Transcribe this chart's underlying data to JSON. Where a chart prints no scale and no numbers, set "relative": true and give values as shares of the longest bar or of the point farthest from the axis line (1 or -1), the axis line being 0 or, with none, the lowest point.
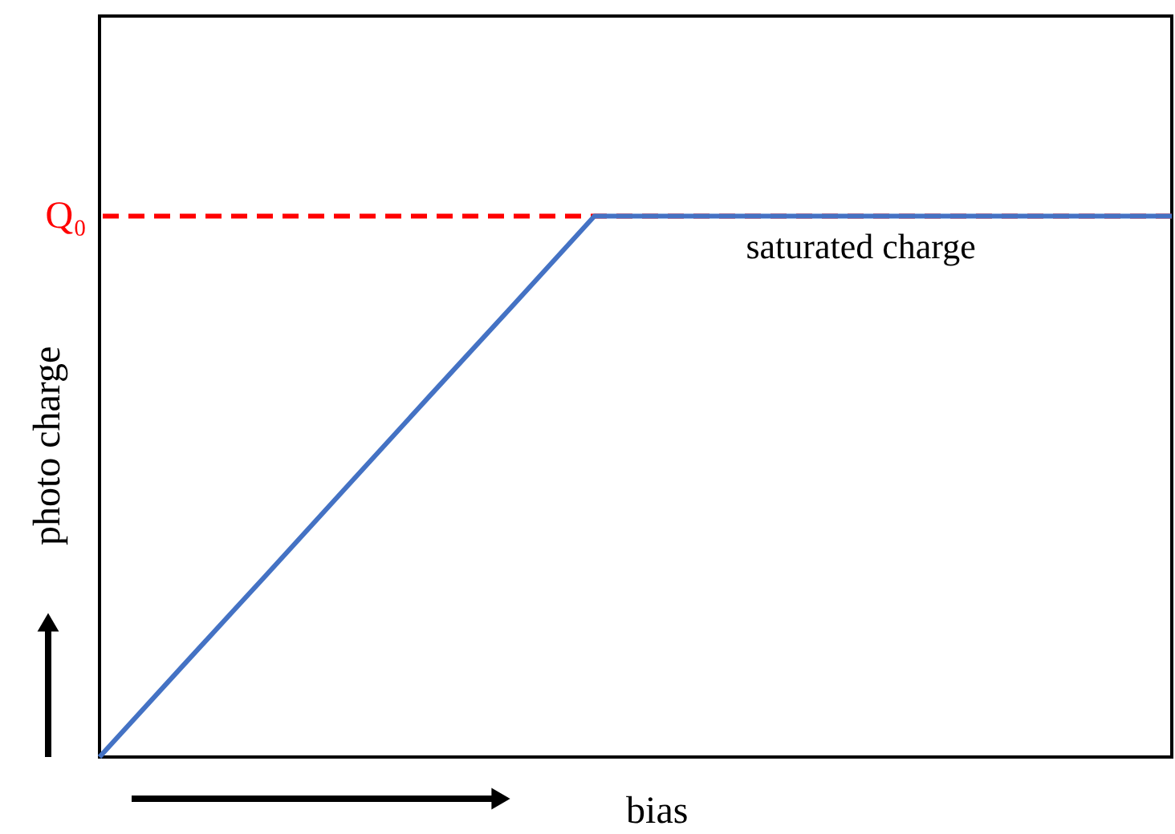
{
  "chart_data": {
    "type": "line",
    "relative": true,
    "xlabel": "bias",
    "ylabel": "photo charge",
    "categories": [
      null,
      null,
      null,
      null,
      null,
      null,
      null,
      null,
      null,
      null,
      null,
      null,
      null,
      null
    ],
    "series": [
      {
        "color": "#4472c4",
        "values": [
          0,
          0.167,
          0.333,
          0.5,
          0.667,
          0.833,
          1,
          1,
          1,
          1,
          1,
          1,
          1,
          1
        ]
      }
    ],
    "ref_lines": [
      {
        "axis": "y",
        "value": 1,
        "label": "Q₀",
        "color": "#ff0000",
        "line_style": "dashed"
      }
    ],
    "annotations": [
      "saturated charge"
    ],
    "grid": false,
    "tick_labels": false,
    "marker": "none",
    "line_style": "solid"
  }
}
